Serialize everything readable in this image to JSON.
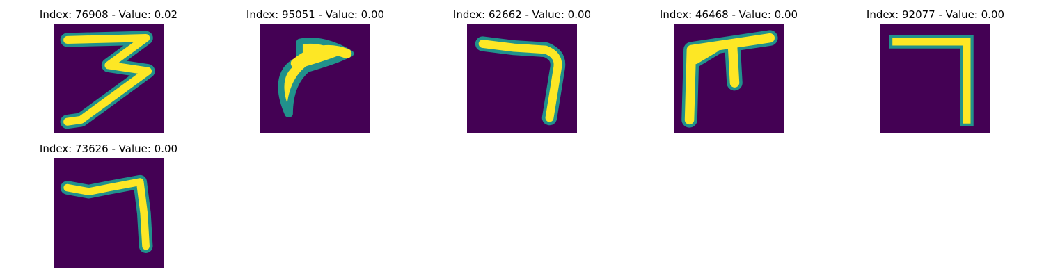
{
  "figure": {
    "colormap": {
      "background": "#440154",
      "edge": "#21918c",
      "mid": "#5ec962",
      "peak": "#fde725"
    },
    "panels": [
      {
        "title": "Index: 76908 - Value: 0.02",
        "image_content": "digit-3"
      },
      {
        "title": "Index: 95051 - Value: 0.00",
        "image_content": "curved-stroke"
      },
      {
        "title": "Index: 62662 - Value: 0.00",
        "image_content": "digit-7-shape"
      },
      {
        "title": "Index: 46468 - Value: 0.00",
        "image_content": "branched-stroke"
      },
      {
        "title": "Index: 92077 - Value: 0.00",
        "image_content": "digit-7-shape"
      },
      {
        "title": "Index: 73626 - Value: 0.00",
        "image_content": "digit-7-shape"
      }
    ]
  }
}
